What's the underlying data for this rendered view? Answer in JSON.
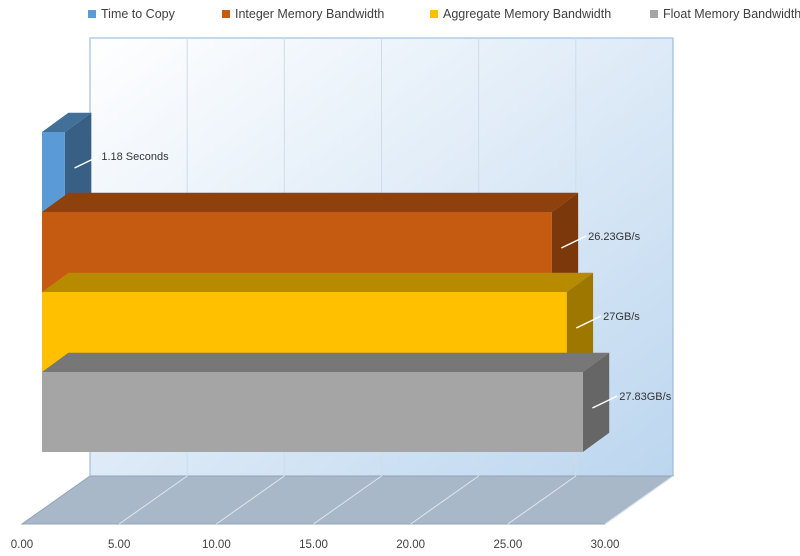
{
  "chart_data": {
    "type": "bar",
    "orientation": "horizontal",
    "three_d": true,
    "legend_position": "top",
    "xlim": [
      0,
      30
    ],
    "x_ticks": [
      "0.00",
      "5.00",
      "10.00",
      "15.00",
      "20.00",
      "25.00",
      "30.00"
    ],
    "grid": true,
    "series": [
      {
        "name": "Time to Copy",
        "value": 1.18,
        "label": "1.18 Seconds",
        "color": "#5B9BD5"
      },
      {
        "name": "Integer Memory Bandwidth",
        "value": 26.23,
        "label": "26.23GB/s",
        "color": "#C55A11"
      },
      {
        "name": "Aggregate Memory Bandwidth",
        "value": 27,
        "label": "27GB/s",
        "color": "#FFC000"
      },
      {
        "name": "Float Memory Bandwidth",
        "value": 27.83,
        "label": "27.83GB/s",
        "color": "#A5A5A5"
      }
    ]
  }
}
